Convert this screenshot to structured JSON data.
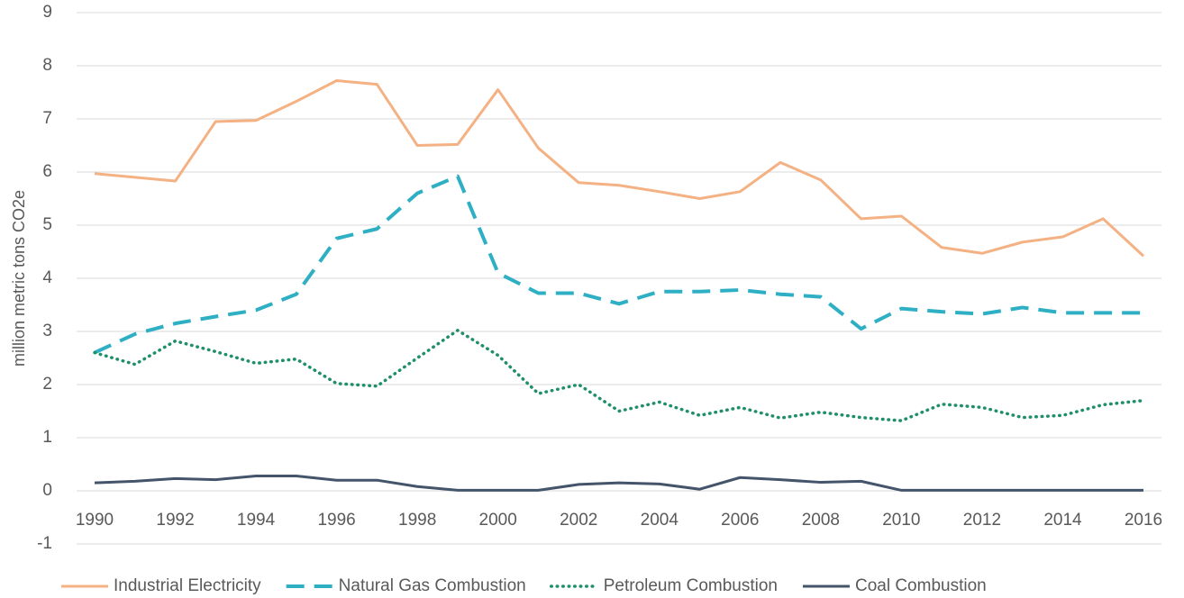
{
  "chart_data": {
    "type": "line",
    "y_label": "million metric tons CO2e",
    "x": [
      1990,
      1991,
      1992,
      1993,
      1994,
      1995,
      1996,
      1997,
      1998,
      1999,
      2000,
      2001,
      2002,
      2003,
      2004,
      2005,
      2006,
      2007,
      2008,
      2009,
      2010,
      2011,
      2012,
      2013,
      2014,
      2015,
      2016
    ],
    "xlim": [
      1990,
      2016
    ],
    "xticks": [
      1990,
      1992,
      1994,
      1996,
      1998,
      2000,
      2002,
      2004,
      2006,
      2008,
      2010,
      2012,
      2014,
      2016
    ],
    "ylim": [
      -1,
      9
    ],
    "yticks": [
      -1,
      0,
      1,
      2,
      3,
      4,
      5,
      6,
      7,
      8,
      9
    ],
    "grid": true,
    "legend": "bottom",
    "series": [
      {
        "name": "Industrial Electricity",
        "color": "#f4b183",
        "style": "solid",
        "values": [
          5.97,
          5.9,
          5.83,
          6.95,
          6.97,
          7.33,
          7.72,
          7.65,
          6.5,
          6.52,
          7.55,
          6.45,
          5.8,
          5.75,
          5.63,
          5.5,
          5.63,
          6.18,
          5.85,
          5.12,
          5.17,
          4.58,
          4.47,
          4.68,
          4.78,
          5.12,
          4.42
        ]
      },
      {
        "name": "Natural Gas Combustion",
        "color": "#2eafc4",
        "style": "dashed",
        "values": [
          2.6,
          2.95,
          3.15,
          3.28,
          3.4,
          3.7,
          4.75,
          4.93,
          5.6,
          5.92,
          4.1,
          3.72,
          3.72,
          3.52,
          3.75,
          3.75,
          3.78,
          3.7,
          3.65,
          3.05,
          3.43,
          3.37,
          3.33,
          3.45,
          3.35,
          3.35,
          3.35
        ]
      },
      {
        "name": "Petroleum Combustion",
        "color": "#1e8f6a",
        "style": "dotted",
        "values": [
          2.6,
          2.38,
          2.82,
          2.62,
          2.4,
          2.48,
          2.02,
          1.97,
          2.5,
          3.02,
          2.55,
          1.83,
          2.0,
          1.5,
          1.67,
          1.42,
          1.57,
          1.37,
          1.48,
          1.38,
          1.32,
          1.63,
          1.57,
          1.38,
          1.42,
          1.62,
          1.7
        ]
      },
      {
        "name": "Coal Combustion",
        "color": "#44546a",
        "style": "solid",
        "values": [
          0.15,
          0.18,
          0.23,
          0.21,
          0.28,
          0.28,
          0.2,
          0.2,
          0.08,
          0.01,
          0.01,
          0.01,
          0.12,
          0.15,
          0.13,
          0.03,
          0.25,
          0.21,
          0.16,
          0.18,
          0.01,
          0.01,
          0.01,
          0.01,
          0.01,
          0.01,
          0.01
        ]
      }
    ]
  }
}
